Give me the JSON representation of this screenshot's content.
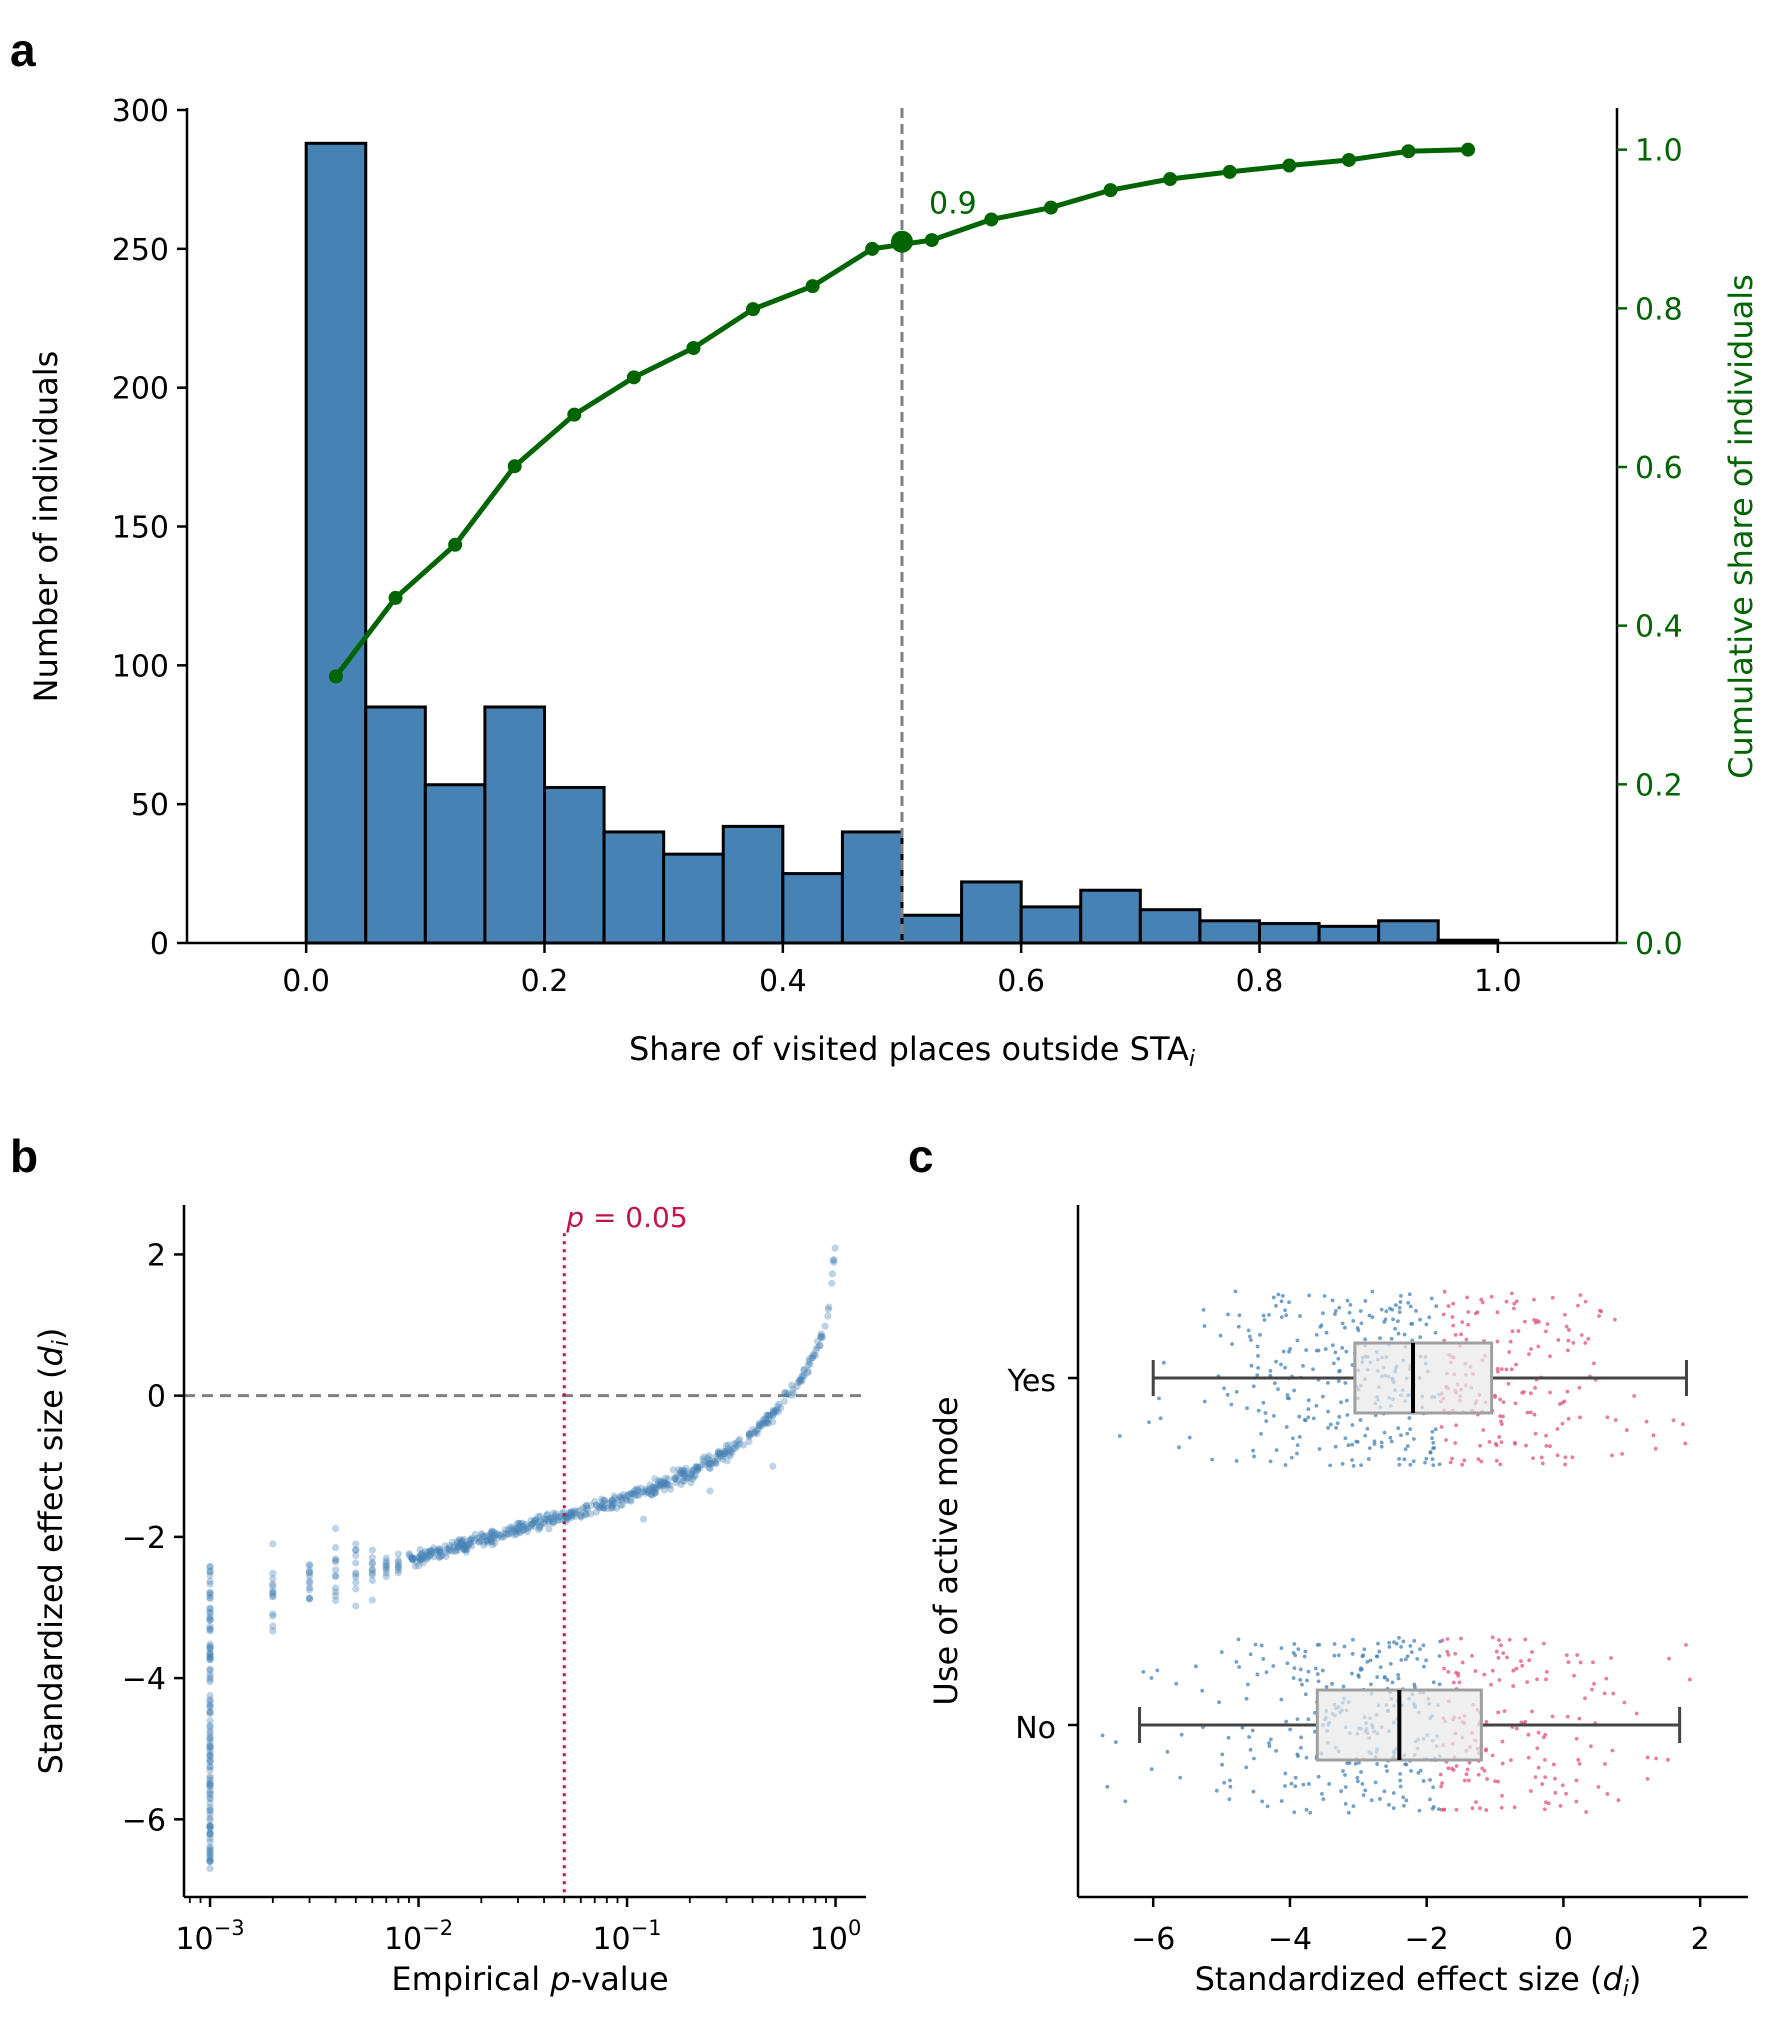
{
  "colors": {
    "bar_fill": "#4682b4",
    "bar_edge": "#000000",
    "cumulative": "#006400",
    "threshold": "#808080",
    "pvalue_line": "#c0144b",
    "scatter": "#4682b4",
    "negative_points": "#4682b4",
    "positive_points": "#e0537a",
    "box_fill": "#e8e8e8",
    "box_edge": "#a0a0a0"
  },
  "chart_data": [
    {
      "panel": "a",
      "type": "bar",
      "panel_label": "a",
      "xlabel": "Share of visited places outside STA",
      "xlabel_sub": "i",
      "ylabel": "Number of individuals",
      "ylabel_right": "Cumulative share of individuals",
      "xlim": [
        -0.1,
        1.1
      ],
      "ylim": [
        0,
        300
      ],
      "ylim_right": [
        0,
        1.05
      ],
      "bin_width": 0.05,
      "bin_starts": [
        0.0,
        0.05,
        0.1,
        0.15,
        0.2,
        0.25,
        0.3,
        0.35,
        0.4,
        0.45,
        0.5,
        0.55,
        0.6,
        0.65,
        0.7,
        0.75,
        0.8,
        0.85,
        0.9,
        0.95
      ],
      "counts": [
        288,
        85,
        57,
        85,
        56,
        40,
        32,
        42,
        25,
        40,
        10,
        22,
        13,
        19,
        12,
        8,
        7,
        6,
        8,
        1
      ],
      "cumulative_x": [
        0.025,
        0.075,
        0.125,
        0.175,
        0.225,
        0.275,
        0.325,
        0.375,
        0.425,
        0.475,
        0.525,
        0.575,
        0.625,
        0.675,
        0.725,
        0.775,
        0.825,
        0.875,
        0.925,
        0.975
      ],
      "cumulative_y": [
        0.336,
        0.435,
        0.502,
        0.601,
        0.666,
        0.713,
        0.75,
        0.799,
        0.828,
        0.875,
        0.886,
        0.912,
        0.927,
        0.949,
        0.963,
        0.972,
        0.98,
        0.987,
        0.998,
        1.0
      ],
      "highlight": {
        "x": 0.5,
        "y": 0.884,
        "label": "0.9"
      },
      "threshold_x": 0.5,
      "xticks": [
        0.0,
        0.2,
        0.4,
        0.6,
        0.8,
        1.0
      ],
      "xtick_labels": [
        "0.0",
        "0.2",
        "0.4",
        "0.6",
        "0.8",
        "1.0"
      ],
      "yticks": [
        0,
        50,
        100,
        150,
        200,
        250,
        300
      ],
      "ytick_labels": [
        "0",
        "50",
        "100",
        "150",
        "200",
        "250",
        "300"
      ],
      "yticks_right": [
        0.0,
        0.2,
        0.4,
        0.6,
        0.8,
        1.0
      ],
      "ytick_labels_right": [
        "0.0",
        "0.2",
        "0.4",
        "0.6",
        "0.8",
        "1.0"
      ]
    },
    {
      "panel": "b",
      "type": "scatter",
      "panel_label": "b",
      "xscale": "log",
      "xlabel_pre": "Empirical ",
      "xlabel_italic": "p",
      "xlabel_post": "-value",
      "ylabel_pre": "Standardized effect size (",
      "ylabel_italic": "d",
      "ylabel_sub": "i",
      "ylabel_post": ")",
      "xlim": [
        0.00075,
        1.4
      ],
      "ylim": [
        -7.1,
        2.7
      ],
      "xticks": [
        0.001,
        0.01,
        0.1,
        1
      ],
      "xtick_labels": [
        {
          "base": "10",
          "exp": "−3"
        },
        {
          "base": "10",
          "exp": "−2"
        },
        {
          "base": "10",
          "exp": "−1"
        },
        {
          "base": "10",
          "exp": "0"
        }
      ],
      "yticks": [
        -6,
        -4,
        -2,
        0,
        2
      ],
      "ytick_labels": [
        "−6",
        "−4",
        "−2",
        "0",
        "2"
      ],
      "zero_line_y": 0,
      "pvalue_line_x": 0.05,
      "pvalue_label_italic": "p",
      "pvalue_label_rest": " = 0.05",
      "curve_p": [
        0.001,
        0.002,
        0.003,
        0.005,
        0.01,
        0.02,
        0.05,
        0.1,
        0.2,
        0.3,
        0.4,
        0.5,
        0.6,
        0.7,
        0.8,
        0.9,
        0.95,
        1.0
      ],
      "curve_d": [
        -3.2,
        -2.85,
        -2.65,
        -2.5,
        -2.3,
        -2.05,
        -1.7,
        -1.45,
        -1.1,
        -0.8,
        -0.55,
        -0.25,
        0.05,
        0.3,
        0.6,
        1.0,
        1.4,
        2.2
      ],
      "min_p_column": {
        "p": 0.001,
        "d_min": -6.7,
        "d_max": -2.4
      }
    },
    {
      "panel": "c",
      "type": "box",
      "panel_label": "c",
      "xlabel_pre": "Standardized effect size (",
      "xlabel_italic": "d",
      "xlabel_sub": "i",
      "xlabel_post": ")",
      "ylabel": "Use of active mode",
      "xlim": [
        -7.1,
        2.7
      ],
      "xticks": [
        -6,
        -4,
        -2,
        0,
        2
      ],
      "xtick_labels": [
        "−6",
        "−4",
        "−2",
        "0",
        "2"
      ],
      "categories": [
        "Yes",
        "No"
      ],
      "boxes": [
        {
          "label": "Yes",
          "whisker_low": -6.0,
          "q1": -3.05,
          "median": -2.2,
          "q3": -1.05,
          "whisker_high": 1.8
        },
        {
          "label": "No",
          "whisker_low": -6.2,
          "q1": -3.6,
          "median": -2.4,
          "q3": -1.2,
          "whisker_high": 1.7
        }
      ]
    }
  ]
}
